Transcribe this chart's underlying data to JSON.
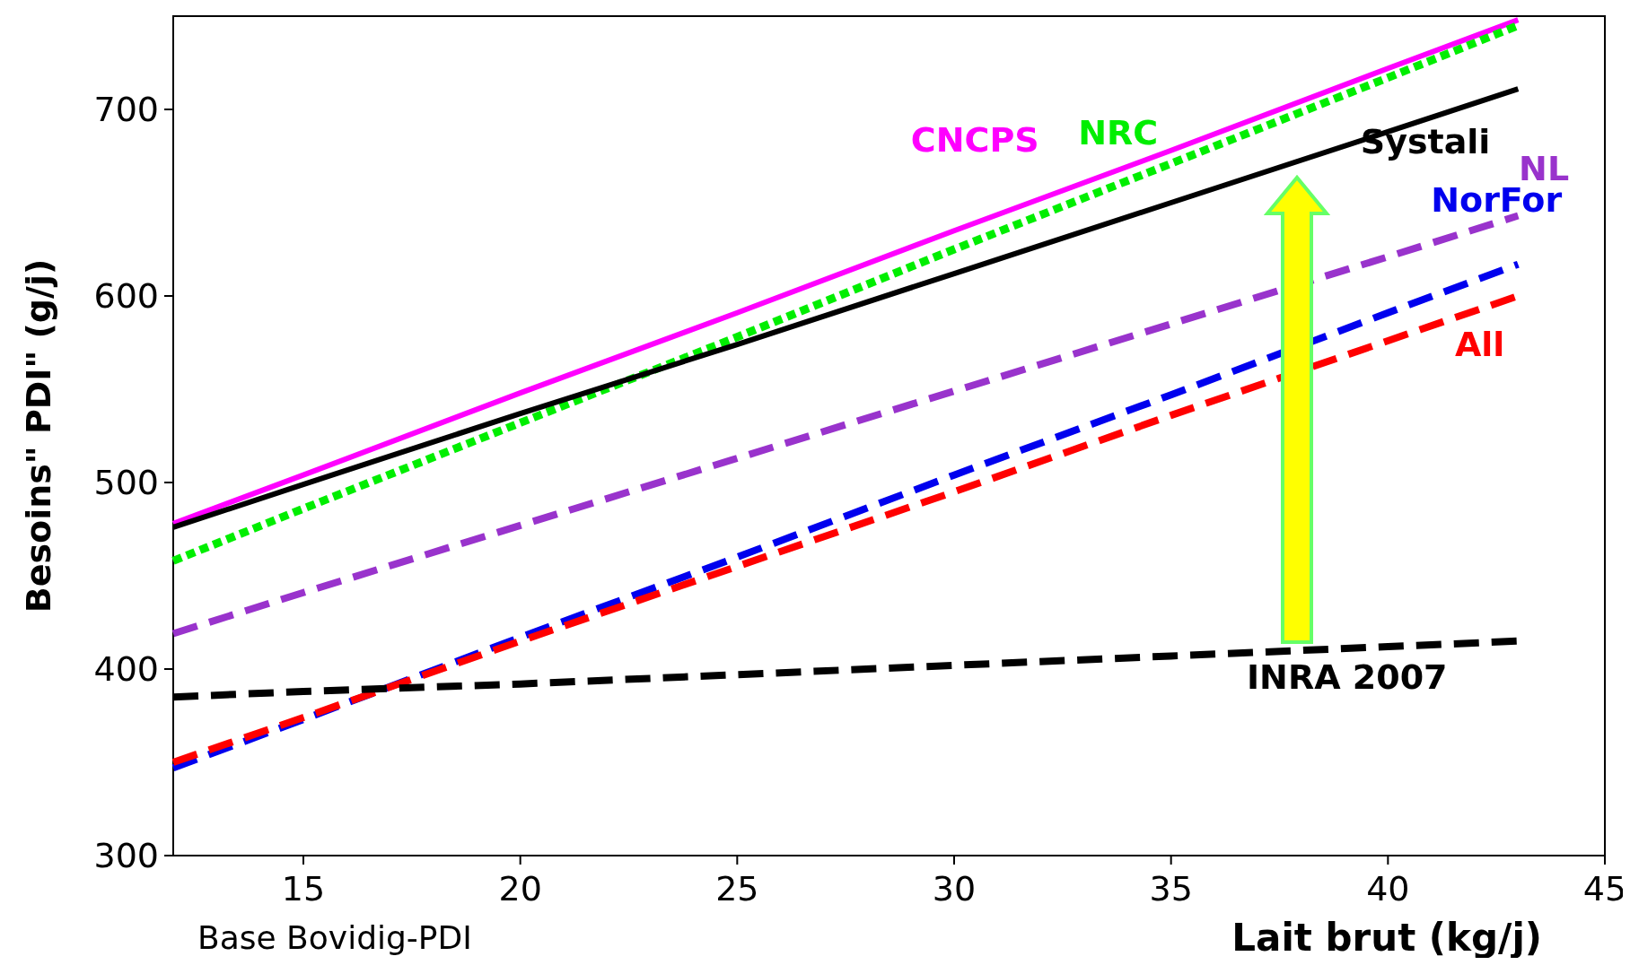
{
  "chart_data": {
    "type": "line",
    "xlabel": "Lait brut (kg/j)",
    "ylabel": "Besoins\" PDI\" (g/j)",
    "xlim": [
      12,
      45
    ],
    "ylim": [
      300,
      750
    ],
    "xticks": [
      15,
      20,
      25,
      30,
      35,
      40,
      45
    ],
    "yticks": [
      300,
      400,
      500,
      600,
      700
    ],
    "grid": false,
    "legend": false,
    "marker": "none",
    "annotations": [
      "Base Bovidig-PDI"
    ],
    "x": [
      12,
      15,
      20,
      25,
      30,
      35,
      40,
      43
    ],
    "series": [
      {
        "name": "CNCPS",
        "color": "#ff00ff",
        "line_style": "solid",
        "values": [
          478,
          504,
          548,
          591,
          635,
          678,
          722,
          748
        ]
      },
      {
        "name": "NRC",
        "color": "#00ee00",
        "line_style": "dotted",
        "values": [
          458,
          486,
          532,
          578,
          625,
          671,
          717,
          745
        ]
      },
      {
        "name": "Systali",
        "color": "#000000",
        "line_style": "solid",
        "values": [
          476,
          499,
          537,
          574,
          612,
          650,
          688,
          711
        ]
      },
      {
        "name": "NL",
        "color": "#9933cc",
        "line_style": "dashed",
        "values": [
          419,
          441,
          477,
          513,
          549,
          585,
          621,
          643
        ]
      },
      {
        "name": "NorFor",
        "color": "#0000ee",
        "line_style": "dashed",
        "values": [
          347,
          373,
          417,
          460,
          504,
          547,
          591,
          617
        ]
      },
      {
        "name": "All",
        "color": "#ff0000",
        "line_style": "dashed",
        "values": [
          350,
          374,
          415,
          455,
          495,
          536,
          576,
          600
        ]
      },
      {
        "name": "INRA 2007",
        "color": "#000000",
        "line_style": "dashed",
        "values": [
          385,
          388,
          392,
          397,
          402,
          407,
          412,
          415
        ]
      }
    ]
  }
}
